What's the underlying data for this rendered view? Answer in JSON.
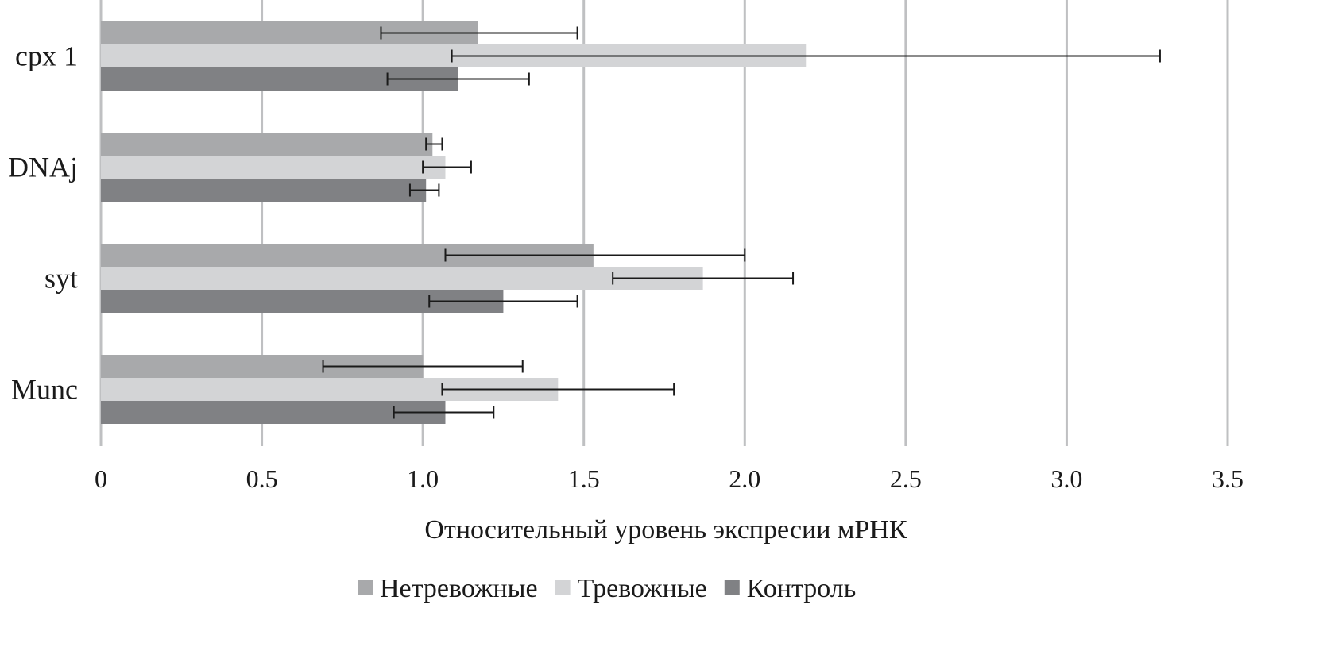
{
  "chart_data": {
    "type": "bar",
    "orientation": "horizontal",
    "title": "",
    "xlabel": "Относительный уровень экспресии мРНК",
    "ylabel": "",
    "xlim": [
      0,
      3.5
    ],
    "x_ticks": [
      0,
      0.5,
      1.0,
      1.5,
      2.0,
      2.5,
      3.0,
      3.5
    ],
    "x_tick_labels": [
      "0",
      "0.5",
      "1.0",
      "1.5",
      "2.0",
      "2.5",
      "3.0",
      "3.5"
    ],
    "grid": "vertical",
    "legend_position": "bottom",
    "categories": [
      "cpx 1",
      "DNAj",
      "syt",
      "Munc"
    ],
    "series": [
      {
        "name": "Нетревожные",
        "color": "#a8a9ab",
        "values": [
          1.17,
          1.03,
          1.53,
          1.0
        ],
        "error_low": [
          0.87,
          1.01,
          1.07,
          0.69
        ],
        "error_high": [
          1.48,
          1.06,
          2.0,
          1.31
        ]
      },
      {
        "name": "Тревожные",
        "color": "#d3d4d6",
        "values": [
          2.19,
          1.07,
          1.87,
          1.42
        ],
        "error_low": [
          1.09,
          1.0,
          1.59,
          1.06
        ],
        "error_high": [
          3.29,
          1.15,
          2.15,
          1.78
        ]
      },
      {
        "name": "Контроль",
        "color": "#808184",
        "values": [
          1.11,
          1.01,
          1.25,
          1.07
        ],
        "error_low": [
          0.89,
          0.96,
          1.02,
          0.91
        ],
        "error_high": [
          1.33,
          1.05,
          1.48,
          1.22
        ]
      }
    ]
  }
}
